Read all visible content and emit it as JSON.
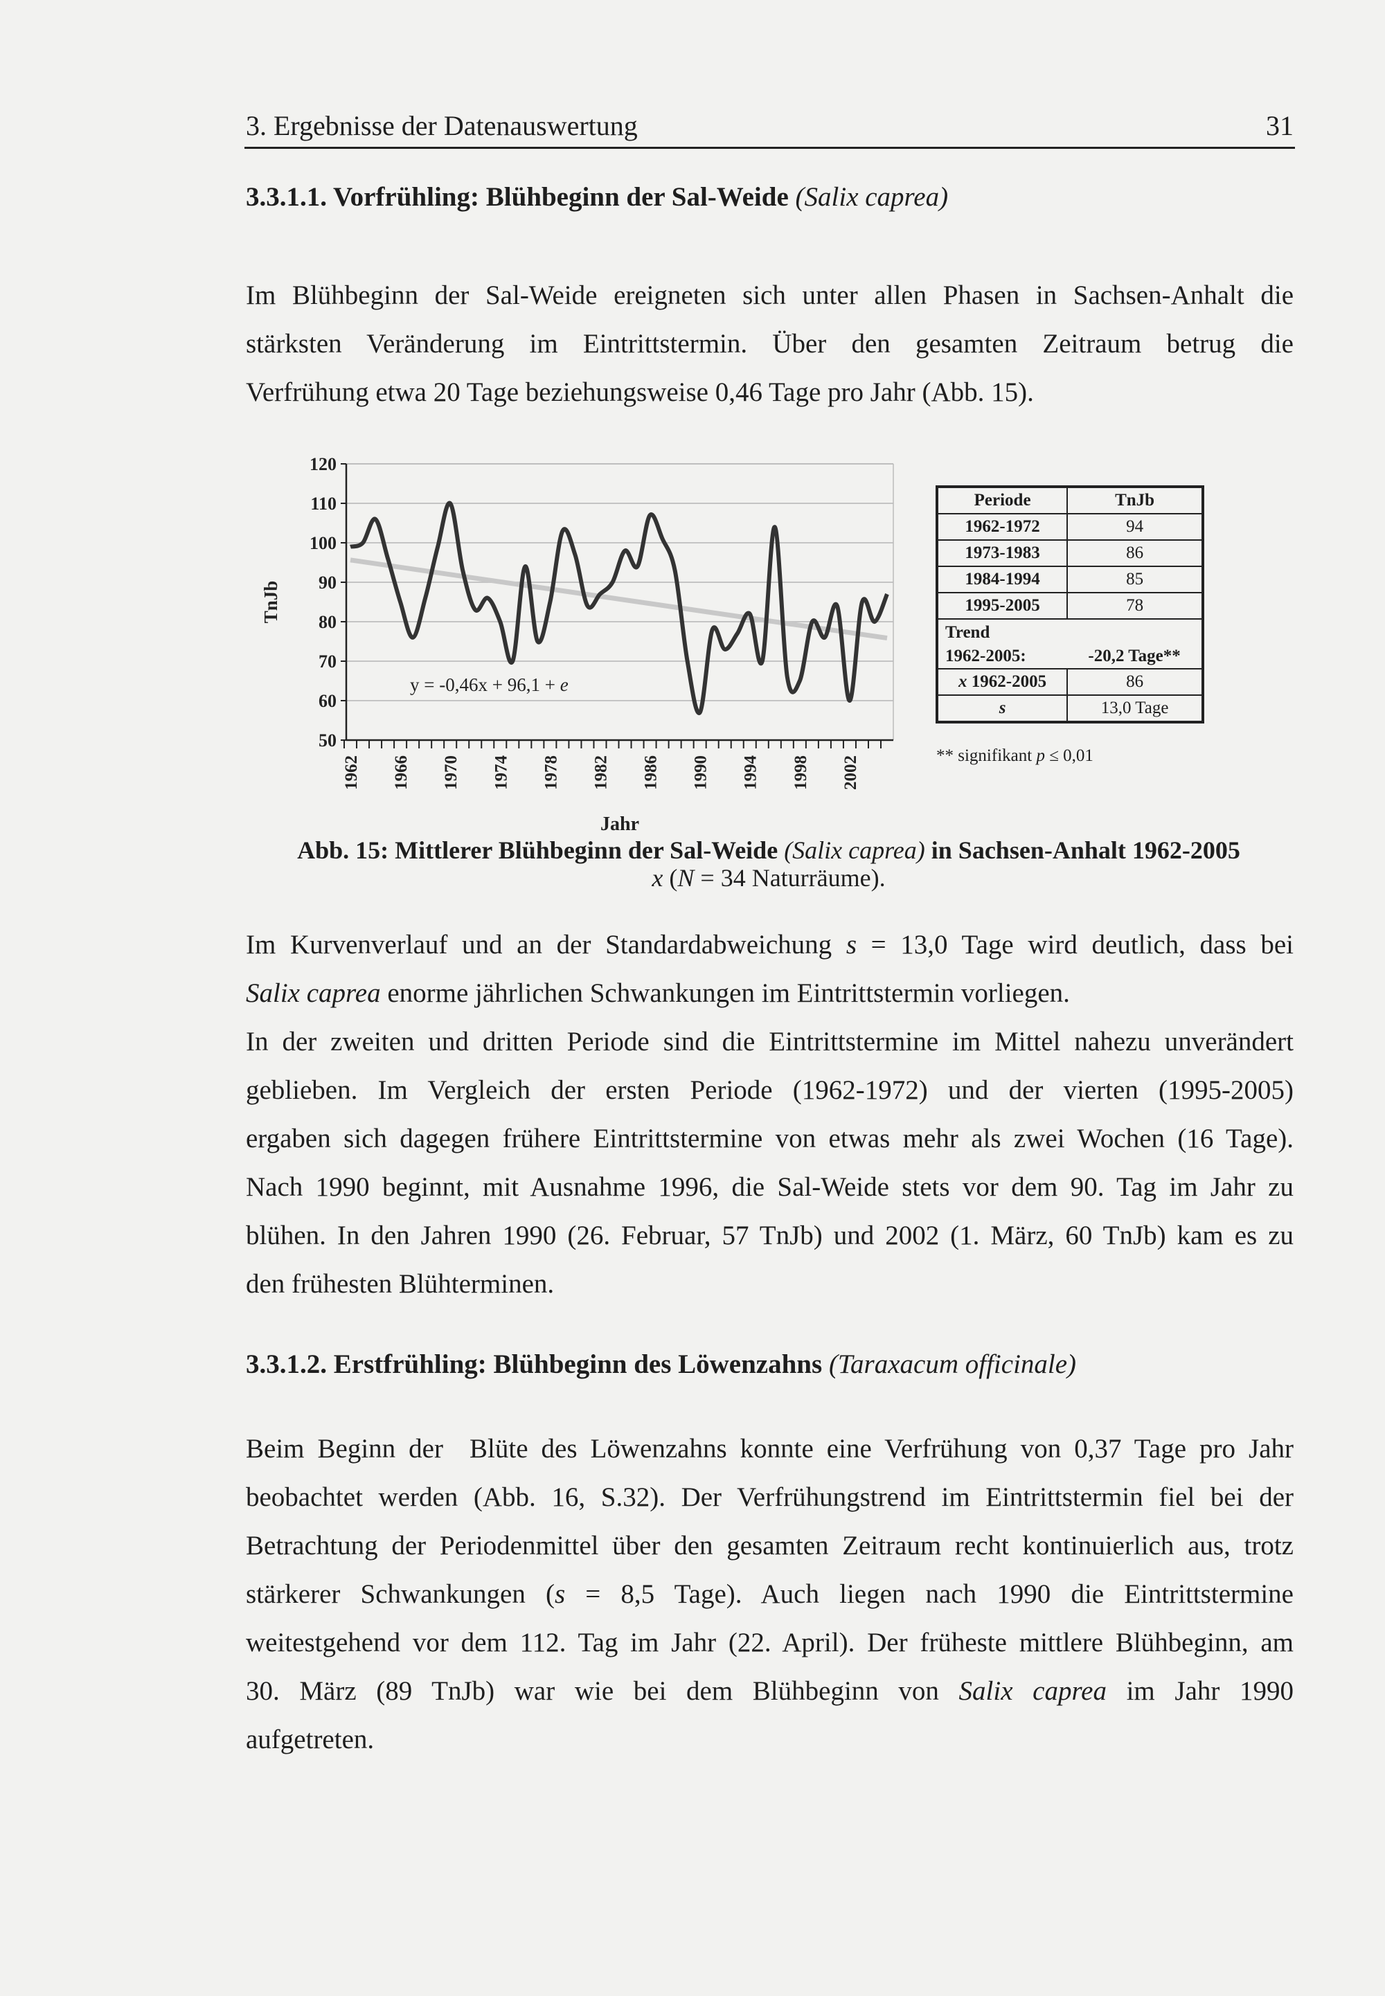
{
  "header": {
    "running_title": "3. Ergebnisse der Datenauswertung",
    "page_number": "31"
  },
  "section1": {
    "heading": "3.3.1.1. Vorfrühling: Blühbeginn der Sal-Weide",
    "heading_species": "(Salix caprea)",
    "paragraphs": [
      [
        [
          {
            "t": "Im Blühbeginn der Sal-Weide ereigneten sich unter allen Phasen in Sachsen-Anhalt die"
          }
        ],
        [
          {
            "t": "stärksten Veränderung im Eintrittstermin. Über den gesamten Zeitraum betrug die"
          }
        ],
        [
          {
            "t": "Verfrühung etwa 20 Tage beziehungsweise 0,46 Tage pro Jahr (Abb. 15)."
          }
        ]
      ]
    ]
  },
  "figure": {
    "table": {
      "headers": [
        "Periode",
        "TnJb"
      ],
      "rows": [
        [
          "1962-1972",
          "94"
        ],
        [
          "1973-1983",
          "86"
        ],
        [
          "1984-1994",
          "85"
        ],
        [
          "1995-2005",
          "78"
        ]
      ],
      "trend_label_1": "Trend",
      "trend_label_2": "1962-2005:",
      "trend_value": "-20,2 Tage**",
      "mean_symbol": "x",
      "mean_label": " 1962-2005",
      "mean_value": "86",
      "sd_label": "s",
      "sd_value": "13,0 Tage"
    },
    "footnote_prefix": "** signifikant ",
    "footnote_p": "p",
    "footnote_suffix": " ≤ 0,01",
    "caption_main": "Abb. 15: Mittlerer Blühbeginn der Sal-Weide",
    "caption_species": "(Salix caprea)",
    "caption_tail": "in Sachsen-Anhalt 1962-2005",
    "caption_line2_x": "x",
    "caption_line2_open": " (",
    "caption_line2_N": "N",
    "caption_line2_rest": " = 34 Naturräume)."
  },
  "chart_data": {
    "type": "line",
    "xlabel": "Jahr",
    "ylabel": "TnJb",
    "ylim": [
      50,
      120
    ],
    "yticks": [
      50,
      60,
      70,
      80,
      90,
      100,
      110,
      120
    ],
    "xlim": [
      1962,
      2005
    ],
    "xtick_labels": [
      "1962",
      "1966",
      "1970",
      "1974",
      "1978",
      "1982",
      "1986",
      "1990",
      "1994",
      "1998",
      "2002"
    ],
    "grid": true,
    "line_color": "#333333",
    "trend_color": "#c8c8c8",
    "annotation_prefix": "y = -0,46x + 96,1 + ",
    "annotation_e": "e",
    "trend": {
      "slope": -0.46,
      "intercept": 96.1
    },
    "x": [
      1962,
      1963,
      1964,
      1965,
      1966,
      1967,
      1968,
      1969,
      1970,
      1971,
      1972,
      1973,
      1974,
      1975,
      1976,
      1977,
      1978,
      1979,
      1980,
      1981,
      1982,
      1983,
      1984,
      1985,
      1986,
      1987,
      1988,
      1989,
      1990,
      1991,
      1992,
      1993,
      1994,
      1995,
      1996,
      1997,
      1998,
      1999,
      2000,
      2001,
      2002,
      2003,
      2004,
      2005
    ],
    "values": [
      99,
      100,
      106,
      96,
      85,
      76,
      86,
      99,
      110,
      93,
      83,
      86,
      80,
      70,
      94,
      75,
      85,
      103,
      97,
      84,
      87,
      90,
      98,
      94,
      107,
      101,
      93,
      70,
      57,
      78,
      73,
      77,
      82,
      70,
      104,
      66,
      65,
      80,
      76,
      84,
      60,
      85,
      80,
      87
    ]
  },
  "section2": {
    "paragraphs": [
      [
        [
          {
            "t": "Im Kurvenverlauf und an der Standardabweichung "
          },
          {
            "t": "s",
            "i": true
          },
          {
            "t": " = 13,0 Tage wird deutlich, dass bei"
          }
        ],
        [
          {
            "t": "Salix caprea",
            "i": true
          },
          {
            "t": " enorme jährlichen Schwankungen im Eintrittstermin vorliegen."
          }
        ]
      ],
      [
        [
          {
            "t": "In der zweiten und dritten Periode sind die Eintrittstermine im Mittel nahezu unverändert"
          }
        ],
        [
          {
            "t": "geblieben. Im Vergleich der ersten Periode (1962-1972) und der vierten (1995-2005)"
          }
        ],
        [
          {
            "t": "ergaben sich dagegen frühere Eintrittstermine von etwas mehr als zwei Wochen (16 Tage)."
          }
        ],
        [
          {
            "t": "Nach 1990 beginnt, mit Ausnahme 1996, die Sal-Weide stets vor dem 90. Tag im Jahr zu"
          }
        ],
        [
          {
            "t": "blühen. In den Jahren 1990 (26. Februar, 57 TnJb) und 2002 (1. März, 60 TnJb) kam es zu"
          }
        ],
        [
          {
            "t": "den frühesten Blühterminen."
          }
        ]
      ]
    ]
  },
  "section3": {
    "heading": "3.3.1.2. Erstfrühling: Blühbeginn des Löwenzahns",
    "heading_species": "(Taraxacum officinale)",
    "paragraphs": [
      [
        [
          {
            "t": "Beim Beginn der  Blüte des Löwenzahns konnte eine Verfrühung von 0,37 Tage pro Jahr"
          }
        ],
        [
          {
            "t": "beobachtet werden (Abb. 16, S.32). Der Verfrühungstrend im Eintrittstermin fiel bei der"
          }
        ],
        [
          {
            "t": "Betrachtung der Periodenmittel über den gesamten Zeitraum recht kontinuierlich aus, trotz"
          }
        ],
        [
          {
            "t": "stärkerer Schwankungen ("
          },
          {
            "t": "s",
            "i": true
          },
          {
            "t": " = 8,5 Tage). Auch liegen nach 1990 die Eintrittstermine"
          }
        ],
        [
          {
            "t": "weitestgehend vor dem 112. Tag im Jahr (22. April). Der früheste mittlere Blühbeginn, am"
          }
        ],
        [
          {
            "t": "30. März (89 TnJb) war wie bei dem Blühbeginn von "
          },
          {
            "t": "Salix caprea",
            "i": true
          },
          {
            "t": " im Jahr 1990"
          }
        ],
        [
          {
            "t": "aufgetreten."
          }
        ]
      ]
    ]
  }
}
